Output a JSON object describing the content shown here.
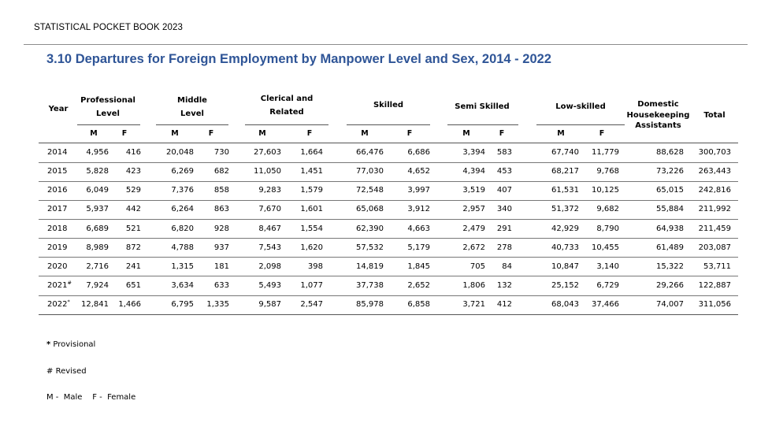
{
  "book_title": "STATISTICAL POCKET BOOK 2023",
  "table_title": "3.10 Departures for Foreign Employment by Manpower Level and Sex, 2014 - 2022",
  "headers": {
    "year": "Year",
    "professional_1": "Professional",
    "professional_2": "Level",
    "middle_1": "Middle",
    "middle_2": "Level",
    "clerical_1": "Clerical and",
    "clerical_2": "Related",
    "skilled": "Skilled",
    "semi_skilled": "Semi Skilled",
    "low_skilled": "Low-skilled",
    "domestic_1": "Domestic",
    "domestic_2": "Housekeeping",
    "domestic_3": "Assistants",
    "total": "Total",
    "male": "M",
    "female": "F"
  },
  "rows": [
    {
      "year": "2014",
      "mark": "",
      "pro_m": "4,956",
      "pro_f": "416",
      "mid_m": "20,048",
      "mid_f": "730",
      "cle_m": "27,603",
      "cle_f": "1,664",
      "ski_m": "66,476",
      "ski_f": "6,686",
      "sem_m": "3,394",
      "sem_f": "583",
      "low_m": "67,740",
      "low_f": "11,779",
      "dom": "88,628",
      "total": "300,703"
    },
    {
      "year": "2015",
      "mark": "",
      "pro_m": "5,828",
      "pro_f": "423",
      "mid_m": "6,269",
      "mid_f": "682",
      "cle_m": "11,050",
      "cle_f": "1,451",
      "ski_m": "77,030",
      "ski_f": "4,652",
      "sem_m": "4,394",
      "sem_f": "453",
      "low_m": "68,217",
      "low_f": "9,768",
      "dom": "73,226",
      "total": "263,443"
    },
    {
      "year": "2016",
      "mark": "",
      "pro_m": "6,049",
      "pro_f": "529",
      "mid_m": "7,376",
      "mid_f": "858",
      "cle_m": "9,283",
      "cle_f": "1,579",
      "ski_m": "72,548",
      "ski_f": "3,997",
      "sem_m": "3,519",
      "sem_f": "407",
      "low_m": "61,531",
      "low_f": "10,125",
      "dom": "65,015",
      "total": "242,816"
    },
    {
      "year": "2017",
      "mark": "",
      "pro_m": "5,937",
      "pro_f": "442",
      "mid_m": "6,264",
      "mid_f": "863",
      "cle_m": "7,670",
      "cle_f": "1,601",
      "ski_m": "65,068",
      "ski_f": "3,912",
      "sem_m": "2,957",
      "sem_f": "340",
      "low_m": "51,372",
      "low_f": "9,682",
      "dom": "55,884",
      "total": "211,992"
    },
    {
      "year": "2018",
      "mark": "",
      "pro_m": "6,689",
      "pro_f": "521",
      "mid_m": "6,820",
      "mid_f": "928",
      "cle_m": "8,467",
      "cle_f": "1,554",
      "ski_m": "62,390",
      "ski_f": "4,663",
      "sem_m": "2,479",
      "sem_f": "291",
      "low_m": "42,929",
      "low_f": "8,790",
      "dom": "64,938",
      "total": "211,459"
    },
    {
      "year": "2019",
      "mark": "",
      "pro_m": "8,989",
      "pro_f": "872",
      "mid_m": "4,788",
      "mid_f": "937",
      "cle_m": "7,543",
      "cle_f": "1,620",
      "ski_m": "57,532",
      "ski_f": "5,179",
      "sem_m": "2,672",
      "sem_f": "278",
      "low_m": "40,733",
      "low_f": "10,455",
      "dom": "61,489",
      "total": "203,087"
    },
    {
      "year": "2020",
      "mark": "",
      "pro_m": "2,716",
      "pro_f": "241",
      "mid_m": "1,315",
      "mid_f": "181",
      "cle_m": "2,098",
      "cle_f": "398",
      "ski_m": "14,819",
      "ski_f": "1,845",
      "sem_m": "705",
      "sem_f": "84",
      "low_m": "10,847",
      "low_f": "3,140",
      "dom": "15,322",
      "total": "53,711"
    },
    {
      "year": "2021",
      "mark": "#",
      "pro_m": "7,924",
      "pro_f": "651",
      "mid_m": "3,634",
      "mid_f": "633",
      "cle_m": "5,493",
      "cle_f": "1,077",
      "ski_m": "37,738",
      "ski_f": "2,652",
      "sem_m": "1,806",
      "sem_f": "132",
      "low_m": "25,152",
      "low_f": "6,729",
      "dom": "29,266",
      "total": "122,887"
    },
    {
      "year": "2022",
      "mark": "*",
      "pro_m": "12,841",
      "pro_f": "1,466",
      "mid_m": "6,795",
      "mid_f": "1,335",
      "cle_m": "9,587",
      "cle_f": "2,547",
      "ski_m": "85,978",
      "ski_f": "6,858",
      "sem_m": "3,721",
      "sem_f": "412",
      "low_m": "68,043",
      "low_f": "37,466",
      "dom": "74,007",
      "total": "311,056"
    }
  ],
  "notes": {
    "provisional_mark": "*",
    "provisional_text": "Provisional",
    "revised_mark": "#",
    "revised_text": "Revised",
    "male_key": "M -  Male",
    "female_key": "F -  Female"
  }
}
